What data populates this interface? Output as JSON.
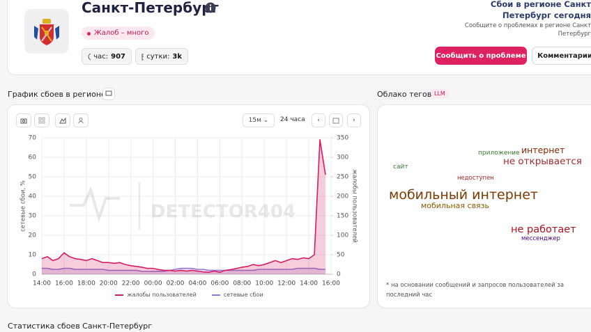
{
  "header": {
    "title": "Санкт-Петербург",
    "badge": "Жалоб – много",
    "stats": [
      {
        "label": "час:",
        "value": "907"
      },
      {
        "label": "сутки:",
        "value": "3k"
      }
    ],
    "side_title": [
      "Сбои в регионе Санкт",
      "Петербург сегодня"
    ],
    "side_text": [
      "Сообщите о проблемах в регионе Санкт",
      "Петербург"
    ],
    "buttons": [
      "Сообщить о проблеме",
      "Комментарии"
    ]
  },
  "chart_section": {
    "title": "График сбоев в регионе",
    "interval": "15м",
    "range": "24 часа",
    "watermark": "DETECTOR404"
  },
  "chart_data": {
    "type": "line",
    "ylabel": "сетевые сбои, %",
    "y2label": "жалобы пользователей",
    "ylim": [
      0,
      70
    ],
    "yticks": [
      0,
      10,
      20,
      30,
      40,
      50,
      60,
      70
    ],
    "y2lim": [
      0,
      350
    ],
    "y2ticks": [
      0,
      50,
      100,
      150,
      200,
      250,
      300,
      350
    ],
    "grid": true,
    "categories": [
      "14:00",
      null,
      null,
      null,
      "16:00",
      null,
      null,
      null,
      "18:00",
      null,
      null,
      null,
      "20:00",
      null,
      null,
      null,
      "22:00",
      null,
      null,
      null,
      "00:00",
      null,
      null,
      null,
      "02:00",
      null,
      null,
      null,
      "04:00",
      null,
      null,
      null,
      "06:00",
      null,
      null,
      null,
      "08:00",
      null,
      null,
      null,
      "10:00",
      null,
      null,
      null,
      "12:00",
      null,
      null,
      null,
      "14:00",
      null,
      null,
      null,
      "16:00"
    ],
    "series": [
      {
        "name": "жалобы пользователей",
        "color": "#d81b60",
        "axis": "y2",
        "values": [
          40,
          45,
          35,
          40,
          55,
          45,
          40,
          38,
          35,
          40,
          35,
          30,
          30,
          28,
          30,
          25,
          22,
          20,
          18,
          15,
          15,
          12,
          10,
          10,
          8,
          10,
          8,
          10,
          8,
          6,
          5,
          8,
          5,
          10,
          12,
          15,
          18,
          20,
          25,
          22,
          25,
          30,
          35,
          30,
          35,
          40,
          38,
          42,
          40,
          50,
          345,
          255,
          null
        ]
      },
      {
        "name": "сетевые сбои",
        "color": "#9575cd",
        "values": [
          3,
          3,
          2.5,
          2.5,
          3,
          3,
          2.5,
          2.5,
          2.5,
          2.5,
          2.5,
          2.5,
          2,
          2,
          2,
          2,
          2,
          2,
          1.5,
          1.5,
          1.5,
          1.5,
          1.5,
          2,
          2.5,
          3,
          3,
          3,
          2.5,
          2.5,
          2,
          2,
          2,
          2,
          2,
          2,
          2,
          2,
          2,
          2.5,
          2.5,
          2.5,
          2.5,
          2.5,
          2.5,
          2.5,
          3,
          3,
          3,
          3,
          2.5,
          2.5,
          null
        ]
      }
    ]
  },
  "tags_section": {
    "title": "Облако тегов",
    "badge": "LLM",
    "tags": [
      "приложение",
      "интернет",
      "сайт",
      "не открывается",
      "недоступен",
      "мобильный интернет",
      "мобильная связь",
      "не работает",
      "мессенджер"
    ],
    "footnote": "* на основании сообщений и запросов пользователей за последний час"
  },
  "stats_title": "Статистика сбоев Санкт-Петербург"
}
